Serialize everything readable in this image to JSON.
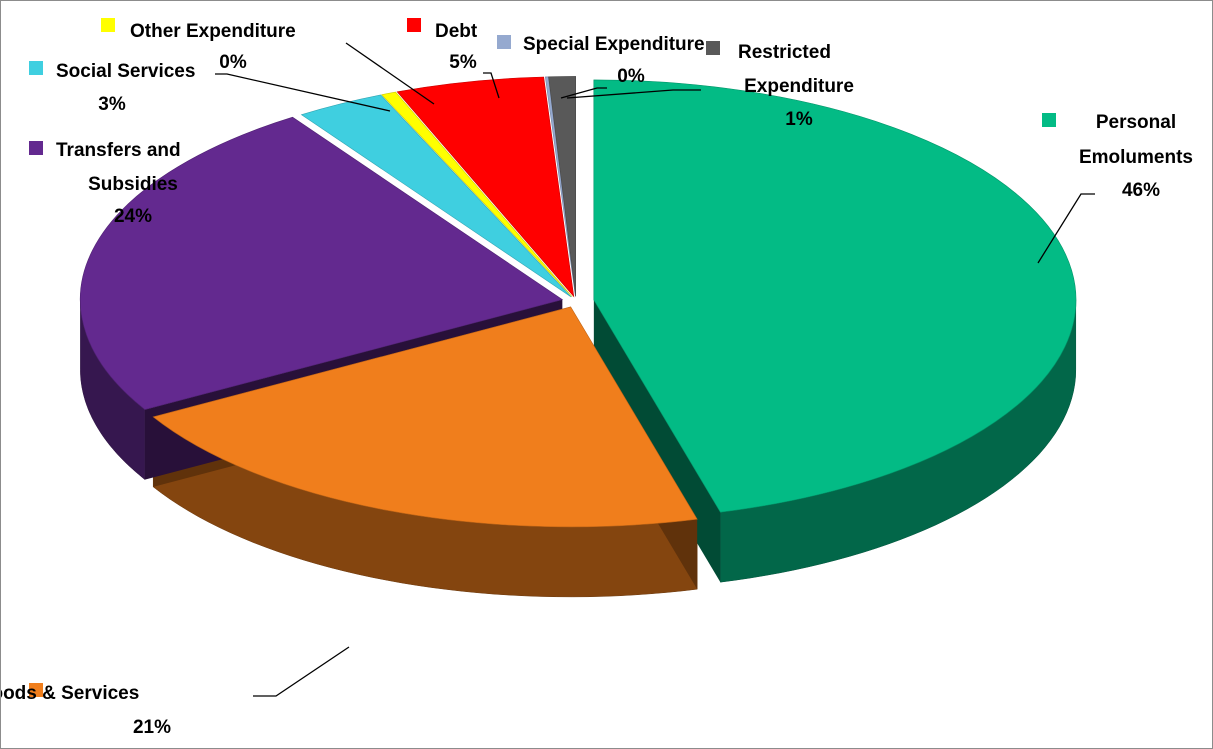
{
  "chart_data": {
    "type": "pie",
    "title": "",
    "slices": [
      {
        "name": "Personal Emoluments",
        "percent_label": "46%",
        "value": 46,
        "color": "#03BB85"
      },
      {
        "name": "Goods & Services",
        "percent_label": "21%",
        "value": 21,
        "color": "#F07E1C"
      },
      {
        "name": "Transfers and Subsidies",
        "percent_label": "24%",
        "value": 24,
        "color": "#63298F"
      },
      {
        "name": "Social Services",
        "percent_label": "3%",
        "value": 3,
        "color": "#3FCFE0"
      },
      {
        "name": "Other Expenditure",
        "percent_label": "0%",
        "value": 0.5,
        "color": "#FFFF00"
      },
      {
        "name": "Debt",
        "percent_label": "5%",
        "value": 5,
        "color": "#FF0000"
      },
      {
        "name": "Special Expenditure",
        "percent_label": "0%",
        "value": 0.1,
        "color": "#95A9CF"
      },
      {
        "name": "Restricted Expenditure",
        "percent_label": "1%",
        "value": 0.9,
        "color": "#595959"
      }
    ],
    "legend_placement": "labels beside slices",
    "style": "3D exploded pie"
  }
}
